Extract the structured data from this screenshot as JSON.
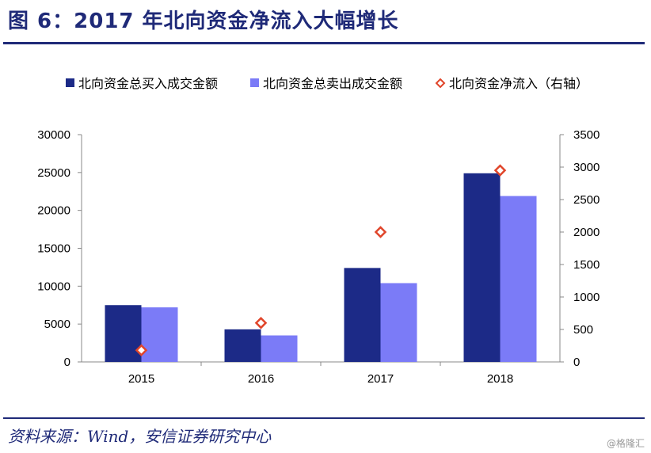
{
  "header": {
    "title": "图 6：2017 年北向资金净流入大幅增长"
  },
  "footer": {
    "source": "资料来源：Wind，安信证券研究中心",
    "watermark": "@格隆汇"
  },
  "colors": {
    "buy": "#1c2a87",
    "sell": "#7b7bf7",
    "net": "#e0452a",
    "accent": "#1f2a78"
  },
  "chart_data": {
    "type": "bar",
    "categories": [
      "2015",
      "2016",
      "2017",
      "2018"
    ],
    "series": [
      {
        "name": "北向资金总买入成交金额",
        "type": "bar",
        "axis": "left",
        "values": [
          7500,
          4300,
          12400,
          24900
        ]
      },
      {
        "name": "北向资金总卖出成交金额",
        "type": "bar",
        "axis": "left",
        "values": [
          7200,
          3500,
          10400,
          21900
        ]
      },
      {
        "name": "北向资金净流入（右轴）",
        "type": "scatter",
        "axis": "right",
        "values": [
          180,
          600,
          2000,
          2950
        ]
      }
    ],
    "ylim_left": [
      0,
      30000
    ],
    "yticks_left": [
      "0",
      "5000",
      "10000",
      "15000",
      "20000",
      "25000",
      "30000"
    ],
    "ylim_right": [
      0,
      3500
    ],
    "yticks_right": [
      "0",
      "500",
      "1000",
      "1500",
      "2000",
      "2500",
      "3000",
      "3500"
    ],
    "legend_position": "top",
    "grid": false
  }
}
